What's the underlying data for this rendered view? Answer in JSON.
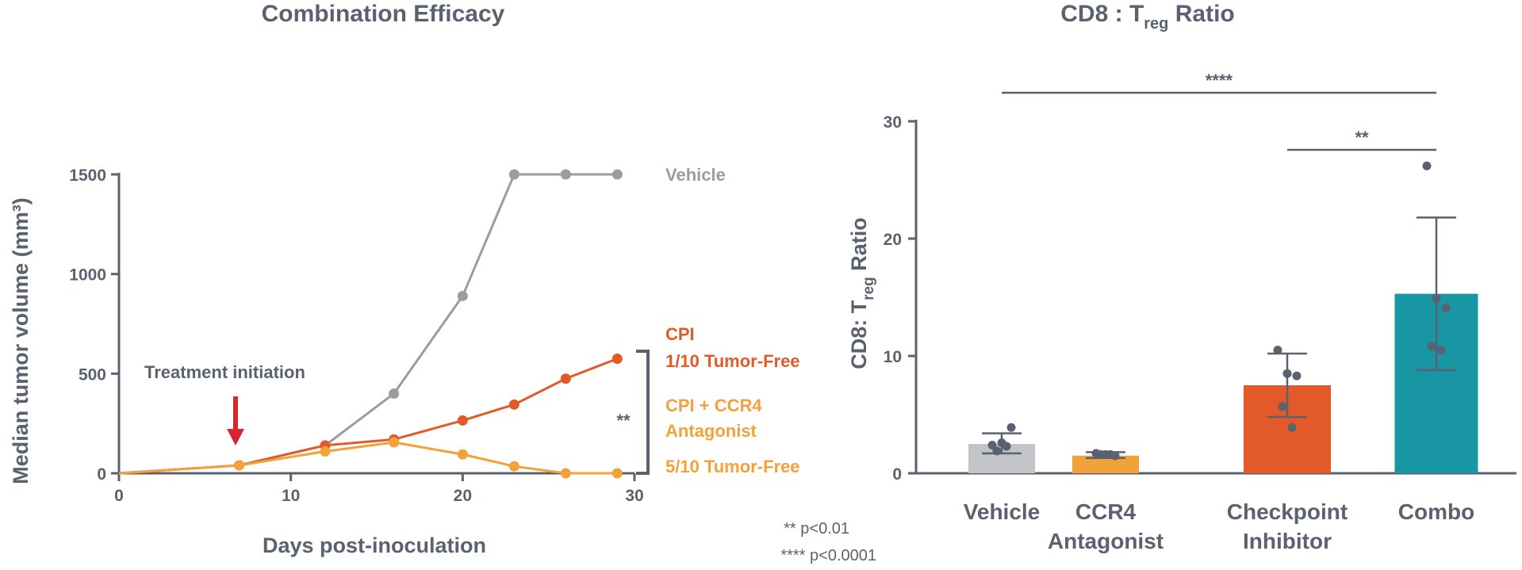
{
  "colors": {
    "axis": "#5a6270",
    "vehicle": "#9a9c9e",
    "cpi": "#e25a29",
    "combo_line": "#f2a23a",
    "treatment_arrow": "#d8262c",
    "bar_vehicle": "#c2c4c7",
    "bar_ccr4": "#f2a23a",
    "bar_checkpoint": "#e25a29",
    "bar_combo": "#1996a3",
    "dots": "#5a6270"
  },
  "chart_data": [
    {
      "type": "line",
      "title": "Combination Efficacy",
      "xlabel": "Days post-inoculation",
      "ylabel": "Median tumor volume (mm³)",
      "xlim": [
        0,
        30
      ],
      "ylim": [
        0,
        1500
      ],
      "xticks": [
        0,
        10,
        20,
        30
      ],
      "yticks": [
        0,
        500,
        1000,
        1500
      ],
      "series": [
        {
          "name": "Vehicle",
          "color_key": "vehicle",
          "x": [
            0,
            7,
            12,
            16,
            20,
            23,
            26,
            29
          ],
          "y": [
            0,
            40,
            140,
            400,
            890,
            1500,
            1500,
            1500
          ]
        },
        {
          "name": "CPI",
          "color_key": "cpi",
          "x": [
            0,
            7,
            12,
            16,
            20,
            23,
            26,
            29
          ],
          "y": [
            0,
            40,
            140,
            170,
            265,
            345,
            475,
            575
          ]
        },
        {
          "name": "CPI + CCR4 Antagonist",
          "color_key": "combo_line",
          "x": [
            0,
            7,
            12,
            16,
            20,
            23,
            26,
            29
          ],
          "y": [
            0,
            40,
            110,
            155,
            95,
            35,
            0,
            0
          ]
        }
      ],
      "annotations": {
        "treatment": "Treatment initiation",
        "vehicle_label": "Vehicle",
        "cpi_label": "CPI",
        "cpi_sub": "1/10 Tumor-Free",
        "combo_label_1": "CPI + CCR4",
        "combo_label_2": "Antagonist",
        "combo_sub": "5/10 Tumor-Free",
        "significance": "**"
      }
    },
    {
      "type": "bar",
      "title_main": "CD8 : T",
      "title_sub": "reg",
      "title_end": " Ratio",
      "ylabel_main": "CD8: T",
      "ylabel_sub": "reg",
      "ylabel_end": " Ratio",
      "ylim": [
        0,
        30
      ],
      "yticks": [
        0,
        10,
        20,
        30
      ],
      "categories": [
        {
          "line1": "Vehicle",
          "line2": ""
        },
        {
          "line1": "CCR4",
          "line2": "Antagonist"
        },
        {
          "line1": "Checkpoint",
          "line2": "Inhibitor"
        },
        {
          "line1": "Combo",
          "line2": ""
        }
      ],
      "values": [
        2.5,
        1.5,
        7.5,
        15.3
      ],
      "error_high": [
        3.4,
        1.8,
        10.2,
        21.8
      ],
      "error_low": [
        1.7,
        1.3,
        4.8,
        8.8
      ],
      "points": [
        [
          2.4,
          2.6,
          3.9,
          1.9,
          2.3
        ],
        [
          1.7,
          1.6,
          1.5,
          1.6,
          1.6
        ],
        [
          10.5,
          8.5,
          8.3,
          5.7,
          3.9
        ],
        [
          26.2,
          14.9,
          14.1,
          10.8,
          10.5
        ]
      ],
      "bar_color_keys": [
        "bar_vehicle",
        "bar_ccr4",
        "bar_checkpoint",
        "bar_combo"
      ],
      "significance": [
        {
          "label": "****",
          "from": 0,
          "to": 3
        },
        {
          "label": "**",
          "from": 2,
          "to": 3
        }
      ]
    }
  ],
  "footnotes": {
    "p1": "** p<0.01",
    "p2": "**** p<0.0001"
  }
}
